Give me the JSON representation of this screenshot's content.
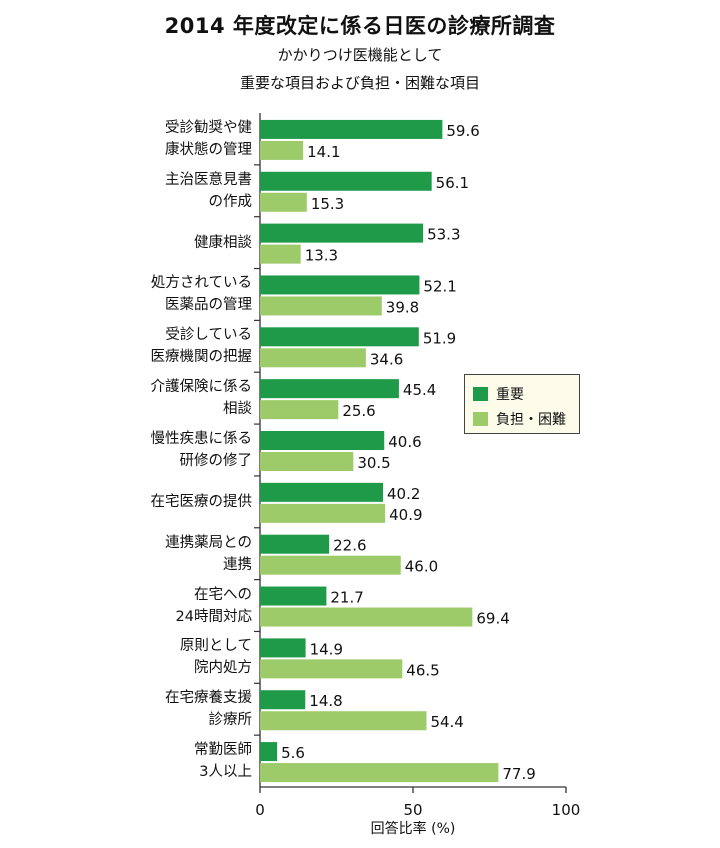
{
  "header": {
    "title": "2014 年度改定に係る日医の診療所調査",
    "subtitle_line1": "かかりつけ医機能として",
    "subtitle_line2": "重要な項目および負担・困難な項目"
  },
  "colors": {
    "important": "#1f9a48",
    "burden": "#9dcb6a"
  },
  "chart_data": {
    "type": "bar",
    "orientation": "horizontal",
    "categories": [
      "受診勧奨や健\n康状態の管理",
      "主治医意見書\nの作成",
      "健康相談",
      "処方されている\n医薬品の管理",
      "受診している\n医療機関の把握",
      "介護保険に係る\n相談",
      "慢性疾患に係る\n研修の修了",
      "在宅医療の提供",
      "連携薬局との\n連携",
      "在宅への\n24時間対応",
      "原則として\n院内処方",
      "在宅療養支援\n診療所",
      "常勤医師\n3人以上"
    ],
    "series": [
      {
        "name": "重要",
        "values": [
          59.6,
          56.1,
          53.3,
          52.1,
          51.9,
          45.4,
          40.6,
          40.2,
          22.6,
          21.7,
          14.9,
          14.8,
          5.6
        ]
      },
      {
        "name": "負担・困難",
        "values": [
          14.1,
          15.3,
          13.3,
          39.8,
          34.6,
          25.6,
          30.5,
          40.9,
          46.0,
          69.4,
          46.5,
          54.4,
          77.9
        ]
      }
    ],
    "value_labels": [
      [
        "59.6",
        "56.1",
        "53.3",
        "52.1",
        "51.9",
        "45.4",
        "40.6",
        "40.2",
        "22.6",
        "21.7",
        "14.9",
        "14.8",
        "5.6"
      ],
      [
        "14.1",
        "15.3",
        "13.3",
        "39.8",
        "34.6",
        "25.6",
        "30.5",
        "40.9",
        "46.0",
        "69.4",
        "46.5",
        "54.4",
        "77.9"
      ]
    ],
    "xlim": [
      0,
      100
    ],
    "xticks": [
      "0",
      "50",
      "100"
    ],
    "xlabel": "回答比率 (%)",
    "legend_position": "right-middle"
  }
}
